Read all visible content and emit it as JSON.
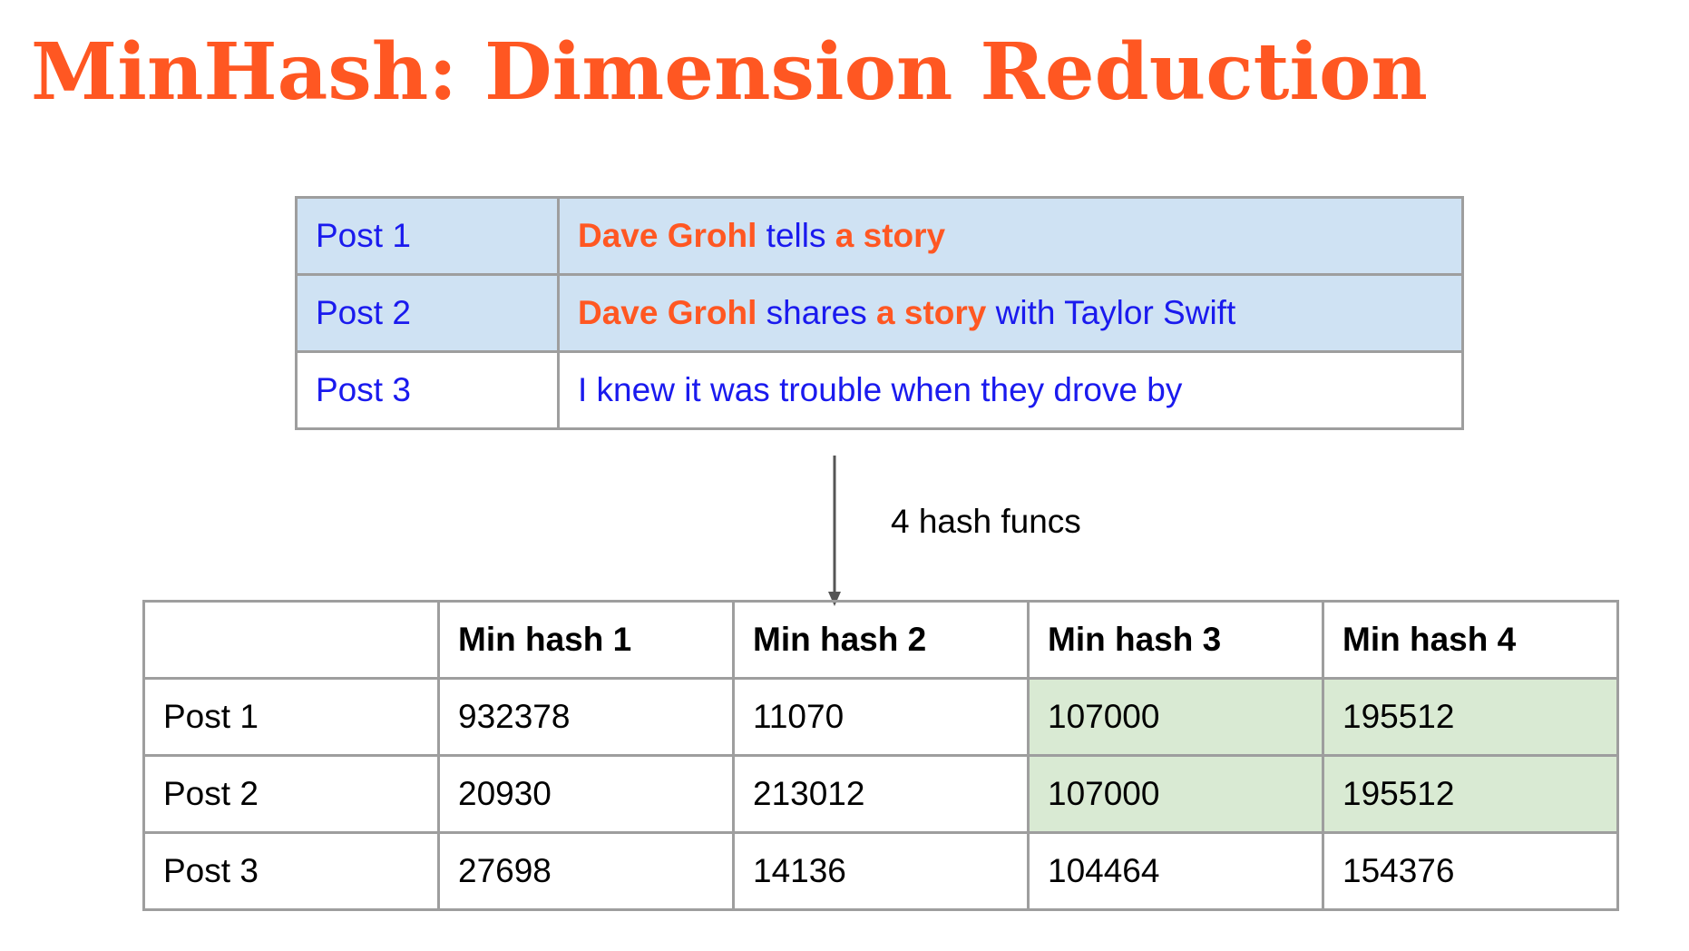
{
  "title": "MinHash: Dimension Reduction",
  "colors": {
    "accent": "#ff5722",
    "post_text": "#1a1aee",
    "highlight_row": "#cfe2f3",
    "match_cell": "#d9ead3",
    "border": "#9e9e9e"
  },
  "posts": [
    {
      "label": "Post 1",
      "highlighted": true,
      "segments": [
        {
          "text": "Dave Grohl",
          "emphasis": true
        },
        {
          "text": " tells ",
          "emphasis": false
        },
        {
          "text": "a story",
          "emphasis": true
        }
      ]
    },
    {
      "label": "Post 2",
      "highlighted": true,
      "segments": [
        {
          "text": "Dave Grohl",
          "emphasis": true
        },
        {
          "text": " shares ",
          "emphasis": false
        },
        {
          "text": "a story",
          "emphasis": true
        },
        {
          "text": " with Taylor Swift",
          "emphasis": false
        }
      ]
    },
    {
      "label": "Post 3",
      "highlighted": false,
      "segments": [
        {
          "text": "I knew it was trouble when they drove by",
          "emphasis": false
        }
      ]
    }
  ],
  "arrow_label": "4 hash funcs",
  "minhash_table": {
    "headers": [
      "",
      "Min hash 1",
      "Min hash 2",
      "Min hash 3",
      "Min hash 4"
    ],
    "rows": [
      {
        "label": "Post 1",
        "values": [
          "932378",
          "11070",
          "107000",
          "195512"
        ],
        "match": [
          false,
          false,
          true,
          true
        ]
      },
      {
        "label": "Post 2",
        "values": [
          "20930",
          "213012",
          "107000",
          "195512"
        ],
        "match": [
          false,
          false,
          true,
          true
        ]
      },
      {
        "label": "Post 3",
        "values": [
          "27698",
          "14136",
          "104464",
          "154376"
        ],
        "match": [
          false,
          false,
          false,
          false
        ]
      }
    ]
  }
}
